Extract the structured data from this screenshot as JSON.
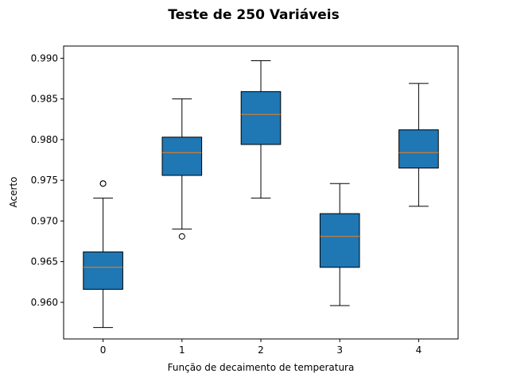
{
  "chart_data": {
    "type": "box",
    "title": "Teste de 250 Variáveis",
    "xlabel": "Função de decaimento de temperatura",
    "ylabel": "Acerto",
    "ylim": [
      0.9555,
      0.9915
    ],
    "yticks": [
      "0.960",
      "0.965",
      "0.970",
      "0.975",
      "0.980",
      "0.985",
      "0.990"
    ],
    "grid": false,
    "legend": "none",
    "box_color": "#1f77b4",
    "median_color": "#ff7f0e",
    "categories": [
      "0",
      "1",
      "2",
      "3",
      "4"
    ],
    "boxes": [
      {
        "category": "0",
        "whislo": 0.9569,
        "q1": 0.9616,
        "median": 0.9643,
        "q3": 0.9662,
        "whishi": 0.9728,
        "fliers": [
          0.9746,
          0.9746
        ]
      },
      {
        "category": "1",
        "whislo": 0.969,
        "q1": 0.9756,
        "median": 0.9784,
        "q3": 0.9803,
        "whishi": 0.985,
        "fliers": [
          0.9681
        ]
      },
      {
        "category": "2",
        "whislo": 0.9728,
        "q1": 0.9794,
        "median": 0.9831,
        "q3": 0.9859,
        "whishi": 0.9897,
        "fliers": []
      },
      {
        "category": "3",
        "whislo": 0.9596,
        "q1": 0.9643,
        "median": 0.9681,
        "q3": 0.9709,
        "whishi": 0.9746,
        "fliers": []
      },
      {
        "category": "4",
        "whislo": 0.9718,
        "q1": 0.9765,
        "median": 0.9784,
        "q3": 0.9812,
        "whishi": 0.9869,
        "fliers": []
      }
    ]
  }
}
